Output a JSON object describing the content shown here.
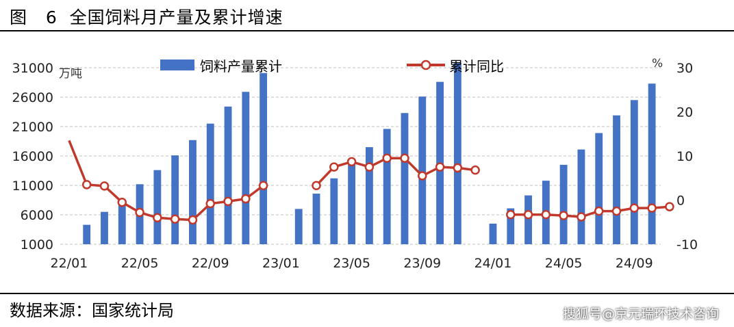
{
  "header": {
    "title": "图   6  全国饲料月产量及累计增速"
  },
  "footer": {
    "source": "数据来源：国家统计局",
    "watermark": "搜狐号@京元瑞环技术咨询"
  },
  "chart_data": {
    "type": "bar",
    "left_unit": "万吨",
    "right_unit": "%",
    "x_tick_labels": [
      "22/01",
      "22/05",
      "22/09",
      "23/01",
      "23/05",
      "23/09",
      "24/01",
      "24/05",
      "24/09"
    ],
    "y_left_ticks": [
      1000,
      6000,
      11000,
      16000,
      21000,
      26000,
      31000
    ],
    "y_left_range": [
      1000,
      31000
    ],
    "y_right_ticks": [
      -10,
      0,
      10,
      20,
      30
    ],
    "y_right_range": [
      -10,
      30
    ],
    "legend": {
      "position": "top",
      "series": [
        "饲料产量累计",
        "累计同比"
      ]
    },
    "colors": {
      "bars": "#4472C4",
      "line": "#C0392B",
      "grid": "#BFBFBF"
    },
    "series": [
      {
        "name": "饲料产量累计",
        "kind": "bar",
        "axis": "left",
        "values": [
          null,
          4300,
          6500,
          8500,
          11200,
          13600,
          16100,
          18700,
          21500,
          24400,
          26900,
          30100,
          null,
          7000,
          9600,
          12200,
          14900,
          17500,
          20600,
          23300,
          26100,
          28600,
          31800,
          null,
          4500,
          7100,
          9300,
          11800,
          14500,
          17100,
          19900,
          22900,
          25500,
          28300
        ]
      },
      {
        "name": "累计同比",
        "kind": "line",
        "axis": "right",
        "values": [
          13.5,
          3.5,
          3.2,
          -0.5,
          -2.8,
          -4.0,
          -4.3,
          -4.5,
          -0.8,
          -0.3,
          0.3,
          3.3,
          null,
          null,
          3.3,
          7.5,
          8.7,
          7.5,
          9.5,
          9.5,
          5.5,
          7.5,
          7.3,
          6.8,
          null,
          -3.3,
          -3.3,
          -3.3,
          -3.5,
          -3.8,
          -2.5,
          -2.5,
          -1.8,
          -1.8,
          -1.5
        ]
      }
    ]
  }
}
